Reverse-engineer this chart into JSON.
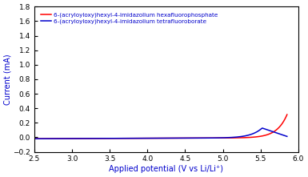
{
  "title": "",
  "xlabel": "Applied potential (V vs Li/Li⁺)",
  "ylabel": "Current (mA)",
  "xlim": [
    2.5,
    6.0
  ],
  "ylim": [
    -0.2,
    1.8
  ],
  "xticks": [
    2.5,
    3.0,
    3.5,
    4.0,
    4.5,
    5.0,
    5.5,
    6.0
  ],
  "yticks": [
    -0.2,
    0.0,
    0.2,
    0.4,
    0.6,
    0.8,
    1.0,
    1.2,
    1.4,
    1.6,
    1.8
  ],
  "legend": [
    "6-(acryloyloxy)hexyl-4-imidazolium hexafluorophosphate",
    "6-(acryloyloxy)hexyl-4-imidazolium tetrafluoroborate"
  ],
  "line_colors": [
    "#ff0000",
    "#0000cc"
  ],
  "background_color": "#ffffff",
  "label_color": "#0000cc",
  "legend_fontsize": 5.2,
  "axis_fontsize": 7,
  "tick_fontsize": 6.5,
  "red_onset": 5.05,
  "red_steepness": 7.5,
  "red_scale": 0.0008,
  "blue_onset": 4.78,
  "blue_steepness": 6.8,
  "blue_scale": 0.0009,
  "blue_peak_v": 5.52,
  "blue_peak_drop": 0.35
}
